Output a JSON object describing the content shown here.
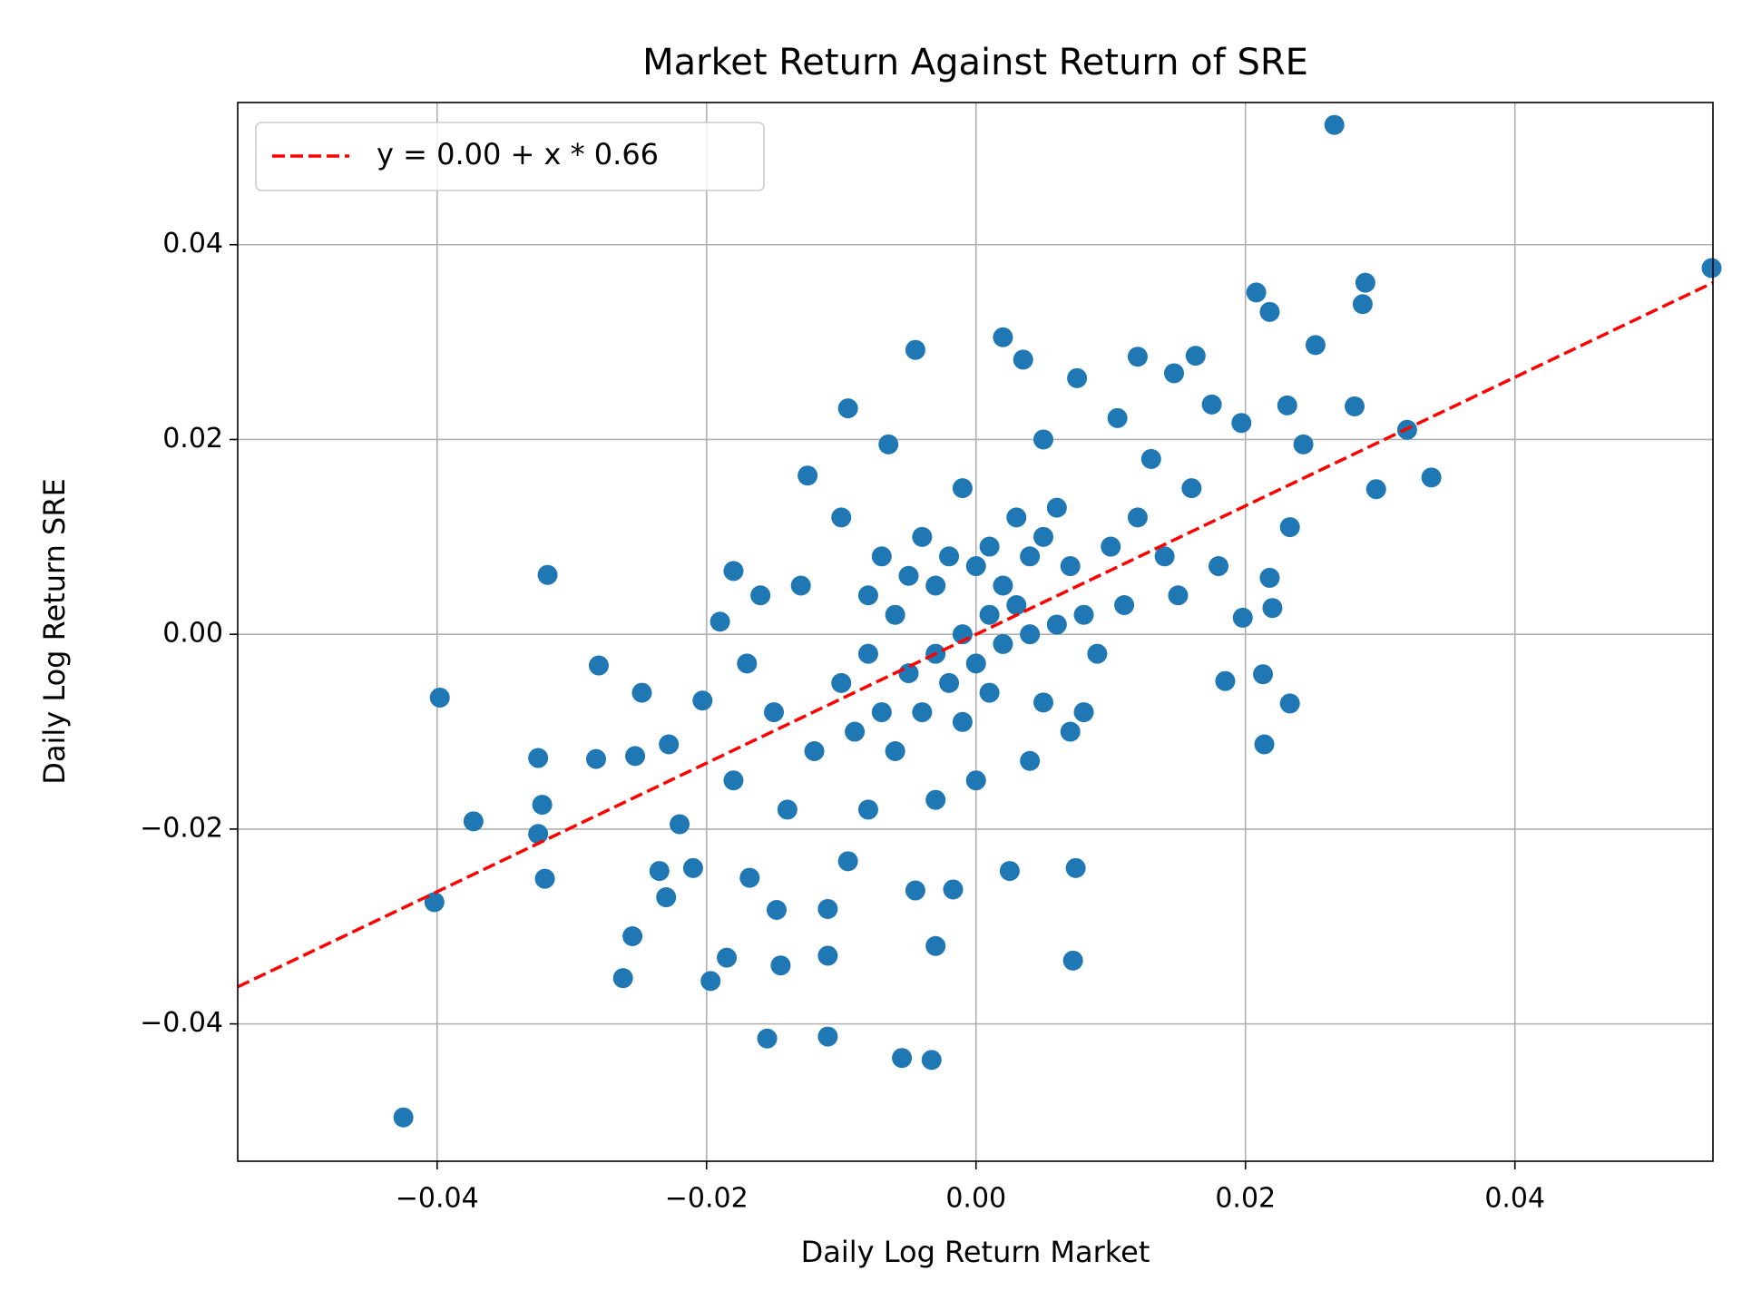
{
  "chart_data": {
    "type": "scatter",
    "title": "Market Return Against Return of SRE",
    "x_label": "Daily Log Return Market",
    "y_label": "Daily Log Return SRE",
    "color": "#1f77b4",
    "x": [
      0.0266,
      0.0546,
      0.0289,
      0.0287,
      0.0208,
      0.0218,
      0.0252,
      0.0281,
      0.032,
      0.0338,
      0.0297,
      0.0231,
      0.0243,
      0.0233,
      0.0218,
      0.022,
      0.0213,
      0.0233,
      0.0214,
      0.0197,
      0.0198,
      0.0185,
      0.0163,
      0.0147,
      0.012,
      0.0175,
      0.0072,
      0.0074,
      0.0025,
      -0.0017,
      -0.003,
      -0.0033,
      -0.0055,
      -0.0045,
      -0.0095,
      -0.011,
      -0.011,
      -0.011,
      -0.0155,
      -0.0145,
      -0.0185,
      -0.0197,
      -0.0148,
      -0.0168,
      -0.021,
      -0.0235,
      -0.023,
      -0.0255,
      -0.0262,
      -0.022,
      -0.032,
      -0.0325,
      -0.0322,
      -0.0325,
      -0.0282,
      -0.0373,
      -0.0402,
      -0.0425,
      -0.0398,
      -0.028,
      -0.0318,
      -0.0248,
      -0.0253,
      -0.0228,
      -0.0203,
      -0.019,
      -0.018,
      -0.0125,
      -0.0095,
      -0.0045,
      0.002,
      0.0035,
      0.0075,
      -0.0065,
      0.0105,
      -0.01,
      -0.009,
      -0.008,
      -0.008,
      -0.007,
      -0.007,
      -0.006,
      -0.006,
      -0.005,
      -0.005,
      -0.004,
      -0.004,
      -0.003,
      -0.003,
      -0.002,
      -0.002,
      -0.001,
      -0.001,
      0.0,
      0.0,
      0.001,
      0.001,
      0.001,
      0.002,
      0.002,
      0.003,
      0.003,
      0.004,
      0.004,
      0.005,
      0.005,
      0.006,
      0.006,
      0.007,
      0.007,
      0.008,
      0.009,
      0.01,
      0.011,
      0.012,
      0.014,
      0.015,
      -0.012,
      -0.014,
      -0.015,
      -0.013,
      -0.01,
      -0.008,
      -0.003,
      0.0,
      0.004,
      0.008,
      0.013,
      0.016,
      0.018,
      0.005,
      -0.001,
      -0.016,
      -0.017,
      -0.018
    ],
    "values": [
      0.0523,
      0.0376,
      0.0361,
      0.0339,
      0.0351,
      0.0331,
      0.0297,
      0.0234,
      0.021,
      0.0161,
      0.0149,
      0.0235,
      0.0195,
      0.011,
      0.0058,
      0.0027,
      -0.0041,
      -0.0071,
      -0.0113,
      0.0217,
      0.0017,
      -0.0048,
      0.0286,
      0.0268,
      0.0285,
      0.0236,
      -0.0335,
      -0.024,
      -0.0243,
      -0.0262,
      -0.032,
      -0.0437,
      -0.0435,
      -0.0263,
      -0.0233,
      -0.0282,
      -0.033,
      -0.0413,
      -0.0415,
      -0.034,
      -0.0332,
      -0.0356,
      -0.0283,
      -0.025,
      -0.024,
      -0.0243,
      -0.027,
      -0.031,
      -0.0353,
      -0.0195,
      -0.0251,
      -0.0205,
      -0.0175,
      -0.0127,
      -0.0128,
      -0.0192,
      -0.0275,
      -0.0496,
      -0.0065,
      -0.0032,
      0.0061,
      -0.006,
      -0.0125,
      -0.0113,
      -0.0068,
      0.0013,
      0.0065,
      0.0163,
      0.0232,
      0.0292,
      0.0305,
      0.0282,
      0.0263,
      0.0195,
      0.0222,
      -0.005,
      -0.01,
      -0.002,
      0.004,
      -0.008,
      0.008,
      -0.012,
      0.002,
      -0.004,
      0.006,
      0.01,
      -0.008,
      -0.002,
      0.005,
      0.008,
      -0.005,
      0.0,
      -0.009,
      -0.003,
      0.007,
      -0.006,
      0.002,
      0.009,
      -0.001,
      0.005,
      0.012,
      0.003,
      0.008,
      0.0,
      -0.007,
      0.01,
      0.001,
      0.013,
      0.007,
      -0.01,
      0.002,
      -0.002,
      0.009,
      0.003,
      0.012,
      0.008,
      0.004,
      -0.012,
      -0.018,
      -0.008,
      0.005,
      0.012,
      -0.018,
      -0.017,
      -0.015,
      -0.013,
      -0.008,
      0.018,
      0.015,
      0.007,
      0.02,
      0.015,
      0.004,
      -0.003,
      -0.015
    ],
    "fit_line": {
      "name": "y = 0.00 + x * 0.66",
      "color": "#ff0000",
      "x": [
        -0.0548,
        0.0547
      ],
      "values": [
        -0.0362,
        0.0361
      ]
    },
    "xlim": [
      -0.0548,
      0.0547
    ],
    "ylim": [
      -0.0541,
      0.0546
    ],
    "xticks": [
      {
        "value": -0.04,
        "label": "−0.04"
      },
      {
        "value": -0.02,
        "label": "−0.02"
      },
      {
        "value": 0,
        "label": "0.00"
      },
      0.02,
      0.04
    ],
    "yticks": [
      {
        "value": -0.04,
        "label": "−0.04"
      },
      {
        "value": -0.02,
        "label": "−0.02"
      },
      {
        "value": 0,
        "label": "0.00"
      },
      0.02,
      0.04
    ],
    "grid": true,
    "legend_position": "upper left"
  }
}
